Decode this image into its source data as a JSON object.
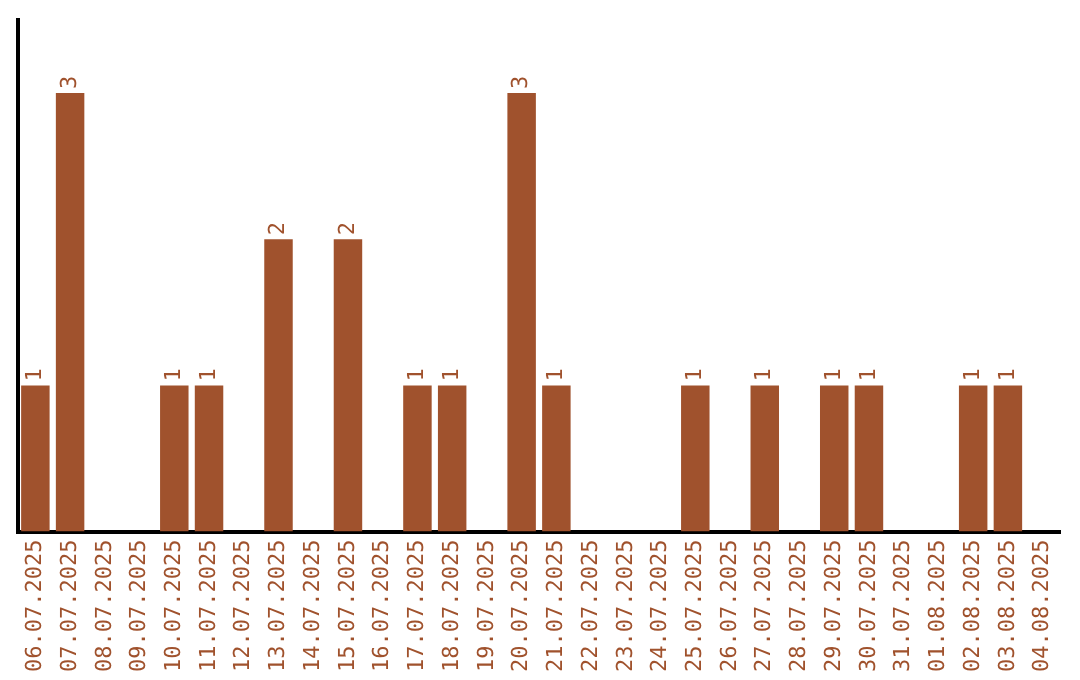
{
  "chart_data": {
    "type": "bar",
    "categories": [
      "06.07.2025",
      "07.07.2025",
      "08.07.2025",
      "09.07.2025",
      "10.07.2025",
      "11.07.2025",
      "12.07.2025",
      "13.07.2025",
      "14.07.2025",
      "15.07.2025",
      "16.07.2025",
      "17.07.2025",
      "18.07.2025",
      "19.07.2025",
      "20.07.2025",
      "21.07.2025",
      "22.07.2025",
      "23.07.2025",
      "24.07.2025",
      "25.07.2025",
      "26.07.2025",
      "27.07.2025",
      "28.07.2025",
      "29.07.2025",
      "30.07.2025",
      "31.07.2025",
      "01.08.2025",
      "02.08.2025",
      "03.08.2025",
      "04.08.2025"
    ],
    "values": [
      1,
      3,
      0,
      0,
      1,
      1,
      0,
      2,
      0,
      2,
      0,
      1,
      1,
      0,
      3,
      1,
      0,
      0,
      0,
      1,
      0,
      1,
      0,
      1,
      1,
      0,
      0,
      1,
      1,
      0
    ],
    "value_labels": [
      "1",
      "3",
      null,
      null,
      "1",
      "1",
      null,
      "2",
      null,
      "2",
      null,
      "1",
      "1",
      null,
      "3",
      "1",
      null,
      null,
      null,
      "1",
      null,
      "1",
      null,
      "1",
      "1",
      null,
      null,
      "1",
      "1",
      null
    ],
    "color": "#a0522d",
    "tick_labels": "x",
    "grid": false,
    "legend": false
  }
}
